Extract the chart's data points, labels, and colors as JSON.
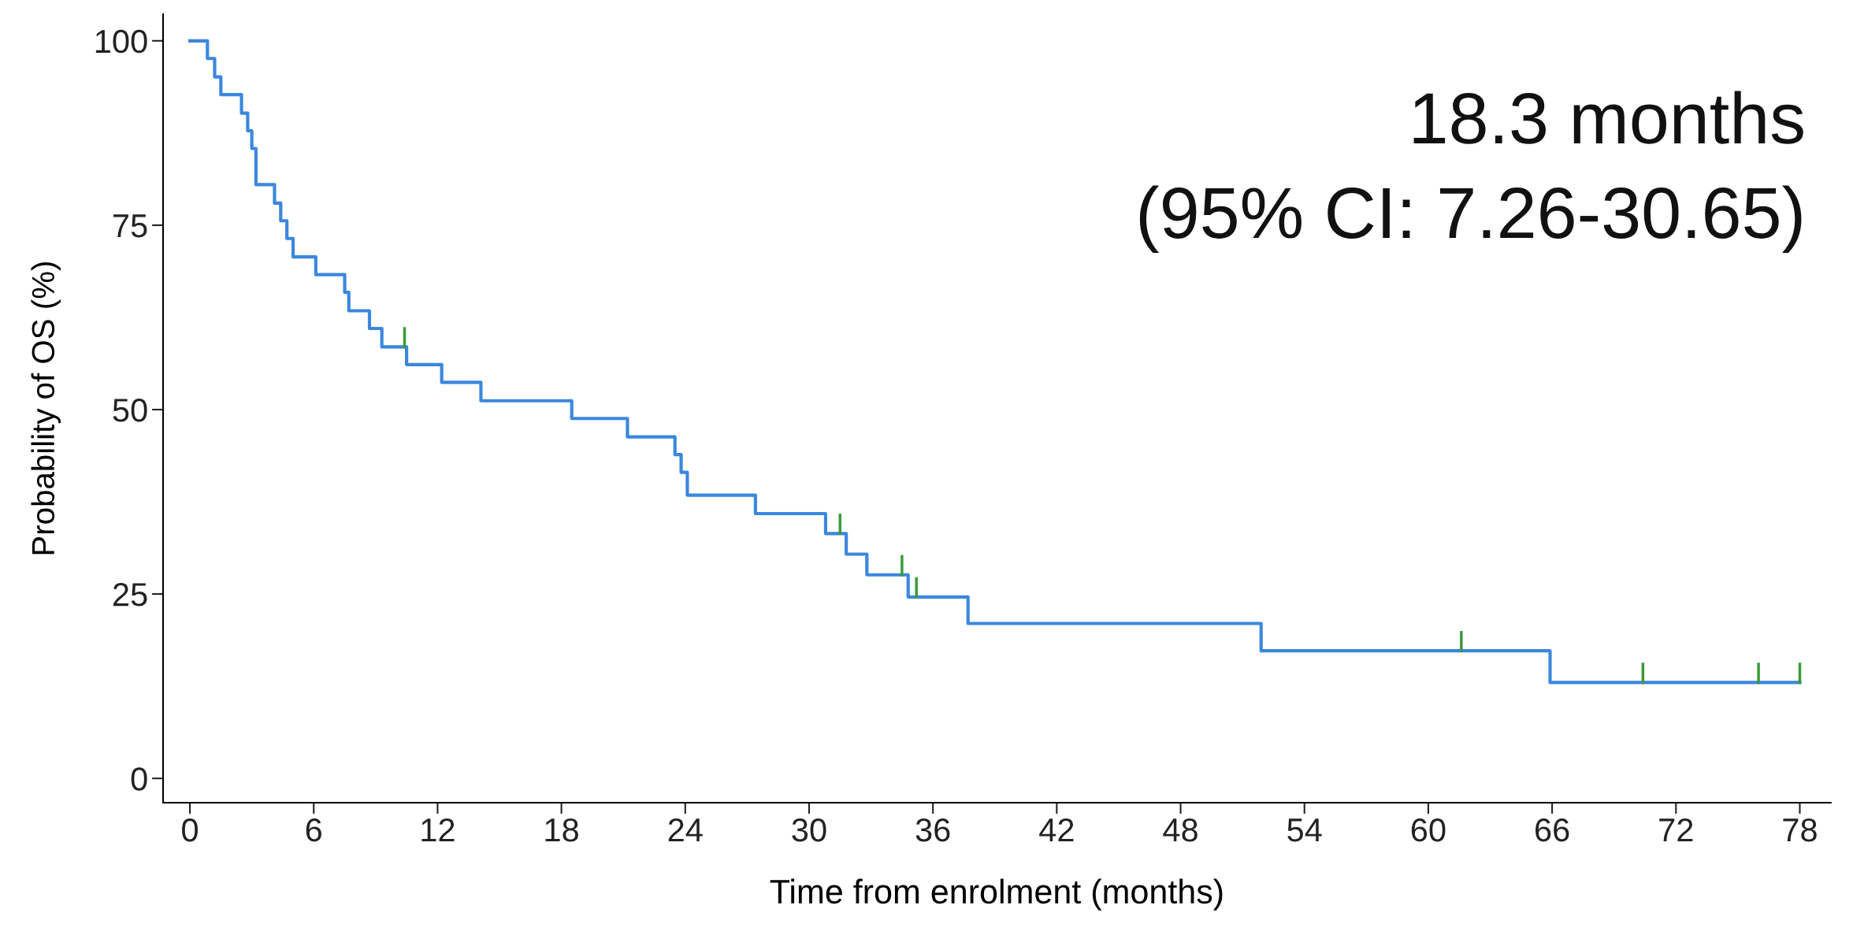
{
  "chart_data": {
    "type": "step",
    "xlabel": "Time from enrolment (months)",
    "ylabel": "Probability of OS (%)",
    "xlim": [
      -1.3,
      79.5
    ],
    "ylim": [
      -3.3,
      103.6
    ],
    "xticks": [
      0,
      6,
      12,
      18,
      24,
      30,
      36,
      42,
      48,
      54,
      60,
      66,
      72,
      78
    ],
    "yticks": [
      0,
      25,
      50,
      75,
      100
    ],
    "grid": false,
    "legend": false,
    "annotations": [
      "18.3 months",
      "(95% CI: 7.26-30.65)"
    ],
    "series": [
      {
        "type": "step",
        "color": "#3b87dd",
        "marker": "none",
        "line_style": "solid",
        "x": [
          0,
          0.85,
          1.2,
          1.5,
          2.5,
          2.8,
          3.0,
          3.2,
          4.1,
          4.4,
          4.7,
          5.0,
          6.1,
          7.5,
          7.7,
          8.7,
          9.3,
          10.5,
          12.2,
          14.1,
          18.5,
          21.2,
          23.5,
          23.8,
          24.1,
          27.4,
          30.8,
          31.8,
          32.8,
          34.8,
          37.7,
          51.9,
          65.9,
          78
        ],
        "values": [
          100,
          97.6,
          95.1,
          92.7,
          90.2,
          87.8,
          85.4,
          80.5,
          78.0,
          75.6,
          73.2,
          70.7,
          68.3,
          65.9,
          63.4,
          61.0,
          58.5,
          56.1,
          53.7,
          51.2,
          48.8,
          46.3,
          43.9,
          41.5,
          38.4,
          35.9,
          33.2,
          30.4,
          27.6,
          24.6,
          21.0,
          17.3,
          13.0,
          13.0
        ]
      },
      {
        "type": "line",
        "color": "#3a9a3a",
        "x": [
          10.4,
          10.4
        ],
        "values": [
          58.5,
          61.0
        ]
      },
      {
        "type": "line",
        "color": "#3a9a3a",
        "x": [
          31.5,
          31.5
        ],
        "values": [
          33.2,
          35.7
        ]
      },
      {
        "type": "line",
        "color": "#3a9a3a",
        "x": [
          34.5,
          34.5
        ],
        "values": [
          27.6,
          30.1
        ]
      },
      {
        "type": "line",
        "color": "#3a9a3a",
        "x": [
          35.2,
          35.2
        ],
        "values": [
          24.6,
          27.1
        ]
      },
      {
        "type": "line",
        "color": "#3a9a3a",
        "x": [
          61.6,
          61.6
        ],
        "values": [
          17.3,
          19.8
        ]
      },
      {
        "type": "line",
        "color": "#3a9a3a",
        "x": [
          70.4,
          70.4
        ],
        "values": [
          13.0,
          15.5
        ]
      },
      {
        "type": "line",
        "color": "#3a9a3a",
        "x": [
          76.0,
          76.0
        ],
        "values": [
          13.0,
          15.5
        ]
      },
      {
        "type": "line",
        "color": "#3a9a3a",
        "x": [
          78.0,
          78.0
        ],
        "values": [
          13.0,
          15.5
        ]
      }
    ]
  }
}
